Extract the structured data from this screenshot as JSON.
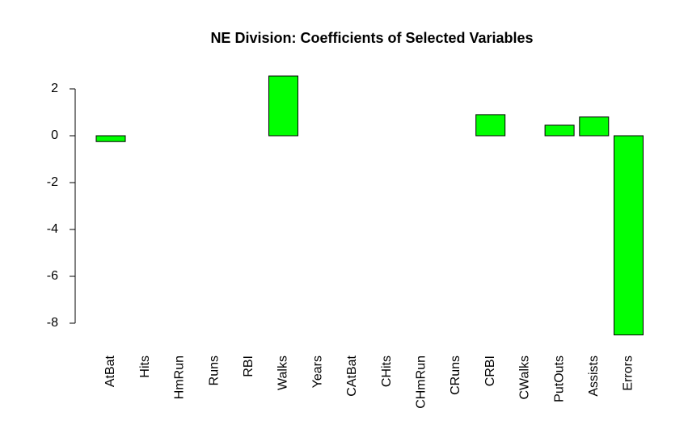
{
  "chart_data": {
    "type": "bar",
    "title": "NE Division: Coefficients of Selected Variables",
    "categories": [
      "AtBat",
      "Hits",
      "HmRun",
      "Runs",
      "RBI",
      "Walks",
      "Years",
      "CAtBat",
      "CHits",
      "CHmRun",
      "CRuns",
      "CRBI",
      "CWalks",
      "PutOuts",
      "Assists",
      "Errors"
    ],
    "values": [
      -0.25,
      0,
      0,
      0,
      0,
      2.55,
      0,
      0,
      0,
      0,
      0,
      0.9,
      0,
      0.45,
      0.8,
      -8.5
    ],
    "color": "#00ff00",
    "ylim": [
      -8.55,
      2.6
    ],
    "yticks": [
      -8,
      -6,
      -4,
      -2,
      0,
      2
    ],
    "grid": false
  }
}
